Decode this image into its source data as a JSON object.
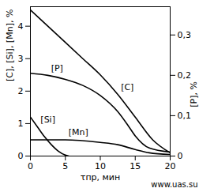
{
  "chart_data": {
    "type": "line",
    "x_label": "τпр, мин",
    "y_label": "[C], [Si], [Mn], %",
    "y2_label": "[P], %",
    "annotations": [
      "www.uas.su"
    ],
    "xlim": [
      0,
      20
    ],
    "xticks": [
      0,
      5,
      10,
      15,
      20
    ],
    "ylim": [
      0,
      4.6
    ],
    "yticks": [
      0,
      1,
      2,
      3,
      4
    ],
    "y2lim": [
      0,
      0.37
    ],
    "y2ticks": [
      0,
      {
        "value": 0.1,
        "label": "0,1"
      },
      {
        "value": 0.2,
        "label": "0,2"
      },
      {
        "value": 0.3,
        "label": "0,3"
      }
    ],
    "grid": false,
    "series": [
      {
        "name": "[C]",
        "color": "#000000",
        "line_style": "solid",
        "x": [
          0,
          2.5,
          5,
          7.5,
          10,
          12.5,
          15,
          17.5,
          20
        ],
        "values": [
          4.5,
          4.0,
          3.5,
          3.0,
          2.5,
          1.9,
          1.2,
          0.5,
          0.1
        ]
      },
      {
        "name": "[P]",
        "color": "#000000",
        "line_style": "solid",
        "axis": "y2",
        "x": [
          0,
          2.5,
          5,
          7.5,
          10,
          12.5,
          14,
          15,
          17,
          20
        ],
        "values": [
          0.205,
          0.2,
          0.19,
          0.175,
          0.15,
          0.11,
          0.075,
          0.05,
          0.02,
          0.01
        ]
      },
      {
        "name": "[Si]",
        "color": "#000000",
        "line_style": "solid",
        "x": [
          0,
          1,
          2,
          3,
          4,
          5,
          5.5
        ],
        "values": [
          1.2,
          0.9,
          0.6,
          0.35,
          0.15,
          0.03,
          0
        ]
      },
      {
        "name": "[Mn]",
        "color": "#000000",
        "line_style": "solid",
        "x": [
          0,
          5,
          10,
          12.5,
          15,
          17,
          20
        ],
        "values": [
          0.5,
          0.5,
          0.42,
          0.35,
          0.2,
          0.1,
          0.05
        ]
      }
    ]
  }
}
